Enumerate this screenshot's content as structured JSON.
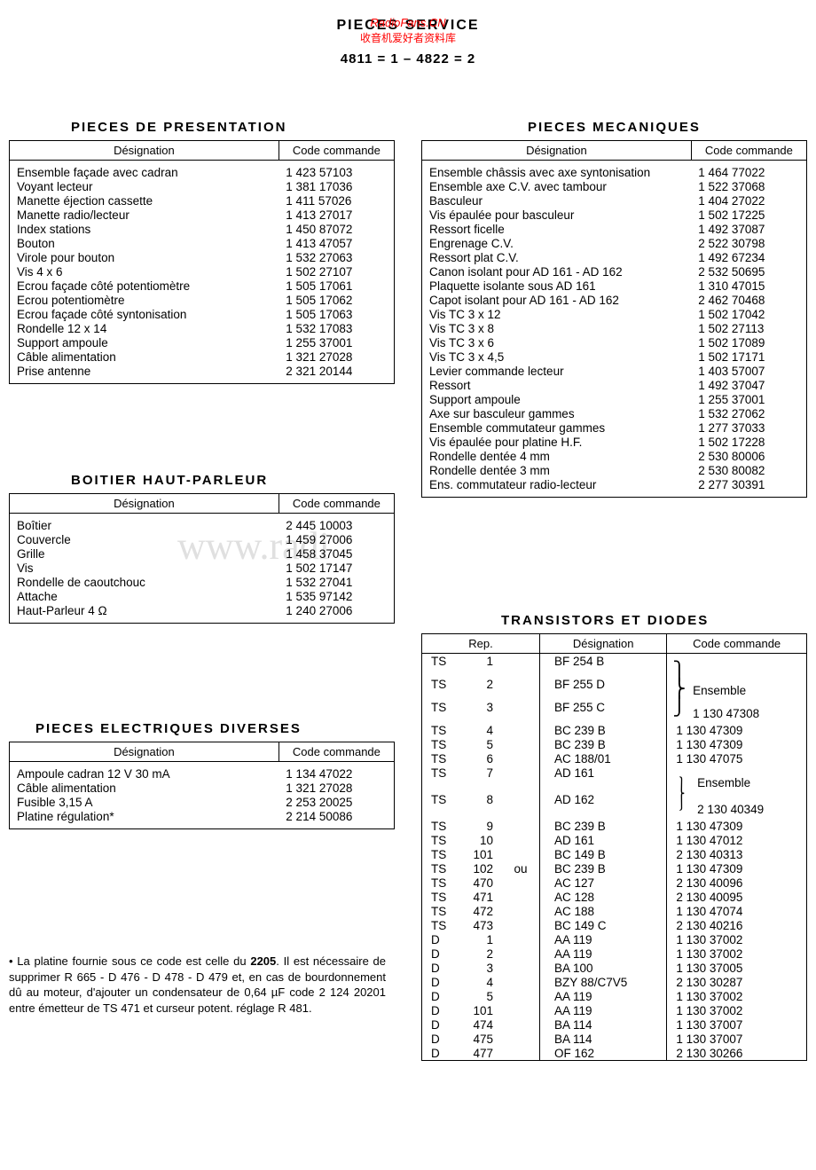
{
  "header": {
    "title": "PIECES SERVICE",
    "overlay1": "RadioFans.CN",
    "overlay2": "收音机爱好者资料库",
    "subtitle": "4811 = 1  –  4822 = 2"
  },
  "watermark": "www.radi",
  "sections": {
    "presentation": {
      "title": "PIECES  DE  PRESENTATION",
      "col_designation": "Désignation",
      "col_code": "Code commande",
      "rows": [
        {
          "d": "Ensemble façade avec cadran",
          "c": "1 423 57103"
        },
        {
          "d": "Voyant lecteur",
          "c": "1 381 17036"
        },
        {
          "d": "Manette éjection cassette",
          "c": "1 411 57026"
        },
        {
          "d": "Manette radio/lecteur",
          "c": "1 413 27017"
        },
        {
          "d": "Index stations",
          "c": "1 450 87072"
        },
        {
          "d": "Bouton",
          "c": "1 413 47057"
        },
        {
          "d": "Virole pour bouton",
          "c": "1 532 27063"
        },
        {
          "d": "Vis 4 x 6",
          "c": "1 502 27107"
        },
        {
          "d": "Ecrou façade côté potentiomètre",
          "c": "1 505 17061"
        },
        {
          "d": "Ecrou potentiomètre",
          "c": "1 505 17062"
        },
        {
          "d": "Ecrou façade côté syntonisation",
          "c": "1 505 17063"
        },
        {
          "d": "Rondelle 12 x 14",
          "c": "1 532 17083"
        },
        {
          "d": "Support ampoule",
          "c": "1 255 37001"
        },
        {
          "d": "Câble alimentation",
          "c": "1 321 27028"
        },
        {
          "d": "Prise antenne",
          "c": "2 321 20144"
        }
      ]
    },
    "hautparleur": {
      "title": "BOITIER  HAUT-PARLEUR",
      "col_designation": "Désignation",
      "col_code": "Code commande",
      "rows": [
        {
          "d": "Boîtier",
          "c": "2 445 10003"
        },
        {
          "d": "Couvercle",
          "c": "1 459 27006"
        },
        {
          "d": "Grille",
          "c": "1 458 37045"
        },
        {
          "d": "Vis",
          "c": "1 502 17147"
        },
        {
          "d": "Rondelle de caoutchouc",
          "c": "1 532 27041"
        },
        {
          "d": "Attache",
          "c": "1 535 97142"
        },
        {
          "d": "Haut-Parleur 4 Ω",
          "c": "1 240 27006"
        }
      ]
    },
    "electriques": {
      "title": "PIECES  ELECTRIQUES  DIVERSES",
      "col_designation": "Désignation",
      "col_code": "Code commande",
      "rows": [
        {
          "d": "Ampoule cadran 12 V 30 mA",
          "c": "1 134 47022"
        },
        {
          "d": "Câble alimentation",
          "c": "1 321 27028"
        },
        {
          "d": "Fusible 3,15 A",
          "c": "2 253 20025"
        },
        {
          "d": "Platine régulation*",
          "c": "2 214 50086"
        }
      ]
    },
    "mecaniques": {
      "title": "PIECES  MECANIQUES",
      "col_designation": "Désignation",
      "col_code": "Code commande",
      "rows": [
        {
          "d": "Ensemble châssis avec axe syntonisation",
          "c": "1 464 77022"
        },
        {
          "d": "Ensemble axe C.V. avec tambour",
          "c": "1 522 37068"
        },
        {
          "d": "Basculeur",
          "c": "1 404 27022"
        },
        {
          "d": "Vis épaulée pour basculeur",
          "c": "1 502 17225"
        },
        {
          "d": "Ressort ficelle",
          "c": "1 492 37087"
        },
        {
          "d": "Engrenage C.V.",
          "c": "2 522 30798"
        },
        {
          "d": "Ressort plat C.V.",
          "c": "1 492 67234"
        },
        {
          "d": "Canon isolant pour AD 161 - AD 162",
          "c": "2 532 50695"
        },
        {
          "d": "Plaquette isolante sous AD 161",
          "c": "1 310 47015"
        },
        {
          "d": "Capot isolant pour AD 161 - AD 162",
          "c": "2 462 70468"
        },
        {
          "d": "Vis TC 3 x 12",
          "c": "1 502 17042"
        },
        {
          "d": "Vis TC 3 x   8",
          "c": "1 502 27113"
        },
        {
          "d": "Vis TC 3 x   6",
          "c": "1 502 17089"
        },
        {
          "d": "Vis TC 3 x   4,5",
          "c": "1 502 17171"
        },
        {
          "d": "Levier commande lecteur",
          "c": "1 403 57007"
        },
        {
          "d": "Ressort",
          "c": "1 492 37047"
        },
        {
          "d": "Support ampoule",
          "c": "1 255 37001"
        },
        {
          "d": "Axe sur basculeur gammes",
          "c": "1 532 27062"
        },
        {
          "d": "Ensemble commutateur gammes",
          "c": "1 277 37033"
        },
        {
          "d": "Vis épaulée pour platine H.F.",
          "c": "1 502 17228"
        },
        {
          "d": "Rondelle dentée 4 mm",
          "c": "2 530 80006"
        },
        {
          "d": "Rondelle dentée 3 mm",
          "c": "2 530 80082"
        },
        {
          "d": "Ens. commutateur radio-lecteur",
          "c": "2 277 30391"
        }
      ]
    },
    "transistors": {
      "title": "TRANSISTORS  ET  DIODES",
      "col_rep": "Rep.",
      "col_designation": "Désignation",
      "col_code": "Code commande",
      "ou_label": "ou",
      "ensemble_label": "Ensemble",
      "rows": [
        {
          "r1": "TS",
          "r2": "1",
          "d": "BF 254 B",
          "c": ""
        },
        {
          "r1": "TS",
          "r2": "2",
          "d": "BF 255 D",
          "c": "Ensemble"
        },
        {
          "r1": "TS",
          "r2": "3",
          "d": "BF 255 C",
          "c": "1 130 47308"
        },
        {
          "r1": "TS",
          "r2": "4",
          "d": "BC 239 B",
          "c": "1 130 47309"
        },
        {
          "r1": "TS",
          "r2": "5",
          "d": "BC 239 B",
          "c": "1 130 47309"
        },
        {
          "r1": "TS",
          "r2": "6",
          "d": "AC 188/01",
          "c": "1 130 47075"
        },
        {
          "r1": "TS",
          "r2": "7",
          "d": "AD 161",
          "c": "Ensemble",
          "brace": "top"
        },
        {
          "r1": "TS",
          "r2": "8",
          "d": "AD 162",
          "c": "2 130 40349",
          "brace": "bot"
        },
        {
          "r1": "TS",
          "r2": "9",
          "d": "BC 239 B",
          "c": "1 130 47309"
        },
        {
          "r1": "TS",
          "r2": "10",
          "d": "AD 161",
          "c": "1 130 47012"
        },
        {
          "r1": "TS",
          "r2": "101",
          "d": "BC 149 B",
          "c": "2 130 40313"
        },
        {
          "r1": "TS",
          "r2": "102",
          "d": "BC 239 B",
          "c": "1 130 47309",
          "ou": true
        },
        {
          "r1": "TS",
          "r2": "470",
          "d": "AC 127",
          "c": "2 130 40096"
        },
        {
          "r1": "TS",
          "r2": "471",
          "d": "AC 128",
          "c": "2 130 40095"
        },
        {
          "r1": "TS",
          "r2": "472",
          "d": "AC 188",
          "c": "1 130 47074"
        },
        {
          "r1": "TS",
          "r2": "473",
          "d": "BC 149 C",
          "c": "2 130 40216"
        },
        {
          "r1": "D",
          "r2": "1",
          "d": "AA 119",
          "c": "1 130 37002"
        },
        {
          "r1": "D",
          "r2": "2",
          "d": "AA 119",
          "c": "1 130 37002"
        },
        {
          "r1": "D",
          "r2": "3",
          "d": "BA 100",
          "c": "1 130 37005"
        },
        {
          "r1": "D",
          "r2": "4",
          "d": "BZY 88/C7V5",
          "c": "2 130 30287"
        },
        {
          "r1": "D",
          "r2": "5",
          "d": "AA 119",
          "c": "1 130 37002"
        },
        {
          "r1": "D",
          "r2": "101",
          "d": "AA 119",
          "c": "1 130 37002"
        },
        {
          "r1": "D",
          "r2": "474",
          "d": "BA 114",
          "c": "1 130 37007"
        },
        {
          "r1": "D",
          "r2": "475",
          "d": "BA 114",
          "c": "1 130 37007"
        },
        {
          "r1": "D",
          "r2": "477",
          "d": "OF 162",
          "c": "2 130 30266"
        }
      ]
    }
  },
  "footnote": "• La platine fournie sous ce code est celle du 2205. Il est nécessaire de supprimer R 665 - D 476 - D 478 - D 479 et, en cas de bourdonnement dû au moteur, d'ajouter un condensateur de 0,64 µF code 2 124 20201 entre émetteur de TS 471 et curseur potent. réglage R 481."
}
